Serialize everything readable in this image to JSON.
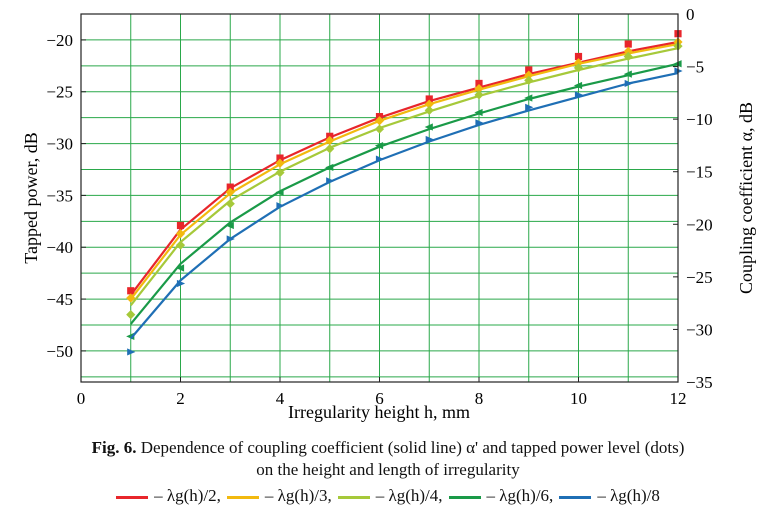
{
  "chart_data": {
    "type": "line",
    "xlabel": "Irregularity height h, mm",
    "ylabel_left": "Tapped power, dB",
    "ylabel_right": "Coupling coefficient α, dB",
    "x_ticks": [
      "0",
      "2",
      "4",
      "6",
      "8",
      "10",
      "12"
    ],
    "y_left_ticks": [
      "−20",
      "−25",
      "−30",
      "−35",
      "−40",
      "−45",
      "−50"
    ],
    "y_right_ticks": [
      "0",
      "−5",
      "−10",
      "−15",
      "−20",
      "−25",
      "−30",
      "−35"
    ],
    "xlim": [
      0,
      12
    ],
    "ylim_left": [
      -53,
      -17.5
    ],
    "ylim_right": [
      -35,
      0
    ],
    "grid": true,
    "legend_position": "bottom",
    "series": [
      {
        "name": "– λg(h)/2,",
        "color": "#e8262b",
        "marker": "square",
        "x": [
          1,
          2,
          3,
          4,
          5,
          6,
          7,
          8,
          9,
          10,
          11,
          12
        ],
        "line_y": [
          -44.6,
          -38.3,
          -34.3,
          -31.6,
          -29.4,
          -27.5,
          -25.9,
          -24.6,
          -23.3,
          -22.2,
          -21.1,
          -20.2
        ],
        "points_y": [
          -44.2,
          -37.9,
          -34.2,
          -31.4,
          -29.3,
          -27.4,
          -25.7,
          -24.2,
          -22.9,
          -21.6,
          -20.4,
          -19.4
        ]
      },
      {
        "name": "– λg(h)/3,",
        "color": "#f2b90f",
        "marker": "diamond",
        "x": [
          1,
          2,
          3,
          4,
          5,
          6,
          7,
          8,
          9,
          10,
          11,
          12
        ],
        "line_y": [
          -45.0,
          -38.8,
          -34.8,
          -32.0,
          -29.8,
          -27.8,
          -26.2,
          -24.8,
          -23.5,
          -22.3,
          -21.3,
          -20.4
        ],
        "points_y": [
          -44.9,
          -38.7,
          -34.7,
          -31.9,
          -29.7,
          -27.8,
          -26.2,
          -24.7,
          -23.4,
          -22.2,
          -21.1,
          -20.2
        ]
      },
      {
        "name": "– λg(h)/4,",
        "color": "#a6c93a",
        "marker": "diamond",
        "x": [
          1,
          2,
          3,
          4,
          5,
          6,
          7,
          8,
          9,
          10,
          11,
          12
        ],
        "line_y": [
          -45.6,
          -39.5,
          -35.5,
          -32.7,
          -30.4,
          -28.5,
          -26.9,
          -25.4,
          -24.1,
          -22.9,
          -21.8,
          -20.8
        ],
        "points_y": [
          -46.5,
          -39.8,
          -35.8,
          -32.8,
          -30.5,
          -28.6,
          -26.8,
          -25.3,
          -23.9,
          -22.7,
          -21.6,
          -20.6
        ]
      },
      {
        "name": "– λg(h)/6,",
        "color": "#1a9a48",
        "marker": "triangle-left",
        "x": [
          1,
          2,
          3,
          4,
          5,
          6,
          7,
          8,
          9,
          10,
          11,
          12
        ],
        "line_y": [
          -47.4,
          -41.6,
          -37.6,
          -34.6,
          -32.3,
          -30.3,
          -28.6,
          -27.1,
          -25.7,
          -24.5,
          -23.4,
          -22.3
        ],
        "points_y": [
          -48.6,
          -42.0,
          -37.9,
          -34.7,
          -32.3,
          -30.2,
          -28.4,
          -27.0,
          -25.6,
          -24.4,
          -23.3,
          -22.3
        ]
      },
      {
        "name": "– λg(h)/8",
        "color": "#1f6fb5",
        "marker": "triangle-right",
        "x": [
          1,
          2,
          3,
          4,
          5,
          6,
          7,
          8,
          9,
          10,
          11,
          12
        ],
        "line_y": [
          -48.8,
          -43.2,
          -39.2,
          -36.1,
          -33.7,
          -31.6,
          -29.8,
          -28.2,
          -26.8,
          -25.5,
          -24.2,
          -23.2
        ],
        "points_y": [
          -50.1,
          -43.5,
          -39.2,
          -36.0,
          -33.6,
          -31.5,
          -29.6,
          -28.0,
          -26.5,
          -25.3,
          -24.2,
          -23.0
        ]
      }
    ]
  },
  "caption": {
    "fig_label": "Fig. 6.",
    "line1": " Dependence of coupling coefficient (solid line) α' and tapped power level (dots)",
    "line2": "on the height and length of irregularity"
  }
}
